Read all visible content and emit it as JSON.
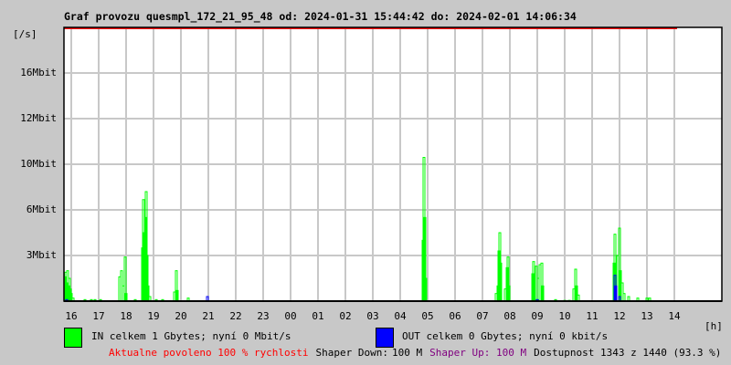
{
  "title": "Graf provozu quesmpl_172_21_95_48 od: 2024-01-31 15:44:42 do: 2024-02-01 14:06:34",
  "colors": {
    "in": "#00ff00",
    "out": "#0000ff",
    "limit": "#ff0000",
    "grid": "#c8c8c8",
    "shaper_up": "#800080"
  },
  "chart_data": {
    "type": "line",
    "ylabel": "[/s]",
    "xlabel": "[h]",
    "y_ticks": [
      "3Mbit",
      "6Mbit",
      "10Mbit",
      "12Mbit",
      "16Mbit"
    ],
    "y_tick_values": [
      3,
      6,
      10,
      12,
      16
    ],
    "x_ticks": [
      "16",
      "17",
      "18",
      "19",
      "20",
      "21",
      "22",
      "23",
      "00",
      "01",
      "02",
      "03",
      "04",
      "05",
      "06",
      "07",
      "08",
      "09",
      "10",
      "11",
      "12",
      "13",
      "14"
    ],
    "x_range": [
      "2024-01-31 15:44:42",
      "2024-02-01 14:06:34"
    ],
    "grid": true,
    "series": [
      {
        "name": "IN",
        "unit": "Mbit/s",
        "points": [
          [
            "15:46",
            1.6
          ],
          [
            "15:48",
            1.9
          ],
          [
            "15:50",
            1.2
          ],
          [
            "15:52",
            2.0
          ],
          [
            "15:54",
            1.0
          ],
          [
            "15:56",
            1.5
          ],
          [
            "15:58",
            0.8
          ],
          [
            "16:00",
            0.5
          ],
          [
            "16:04",
            0.2
          ],
          [
            "16:30",
            0.1
          ],
          [
            "16:44",
            0.1
          ],
          [
            "16:52",
            0.1
          ],
          [
            "17:04",
            0.1
          ],
          [
            "17:46",
            1.6
          ],
          [
            "17:50",
            2.0
          ],
          [
            "17:54",
            1.0
          ],
          [
            "17:58",
            2.9
          ],
          [
            "18:00",
            0.5
          ],
          [
            "18:20",
            0.1
          ],
          [
            "18:36",
            3.5
          ],
          [
            "18:38",
            6.9
          ],
          [
            "18:40",
            4.5
          ],
          [
            "18:42",
            5.5
          ],
          [
            "18:44",
            7.6
          ],
          [
            "18:46",
            3.0
          ],
          [
            "18:48",
            1.0
          ],
          [
            "18:52",
            0.3
          ],
          [
            "19:06",
            0.1
          ],
          [
            "19:20",
            0.1
          ],
          [
            "19:46",
            0.6
          ],
          [
            "19:50",
            2.0
          ],
          [
            "19:52",
            0.7
          ],
          [
            "20:16",
            0.2
          ],
          [
            "04:50",
            4.0
          ],
          [
            "04:52",
            10.3
          ],
          [
            "04:54",
            5.5
          ],
          [
            "04:56",
            1.5
          ],
          [
            "07:30",
            0.5
          ],
          [
            "07:34",
            1.0
          ],
          [
            "07:36",
            3.3
          ],
          [
            "07:38",
            4.5
          ],
          [
            "07:40",
            2.5
          ],
          [
            "07:50",
            0.8
          ],
          [
            "07:54",
            2.2
          ],
          [
            "07:56",
            2.9
          ],
          [
            "07:58",
            1.0
          ],
          [
            "08:50",
            1.8
          ],
          [
            "08:52",
            2.6
          ],
          [
            "08:54",
            1.2
          ],
          [
            "08:58",
            2.3
          ],
          [
            "09:02",
            1.5
          ],
          [
            "09:06",
            2.4
          ],
          [
            "09:10",
            2.5
          ],
          [
            "09:12",
            1.0
          ],
          [
            "09:40",
            0.1
          ],
          [
            "10:00",
            0.05
          ],
          [
            "10:10",
            0.05
          ],
          [
            "10:20",
            0.8
          ],
          [
            "10:24",
            2.1
          ],
          [
            "10:26",
            1.0
          ],
          [
            "10:30",
            0.4
          ],
          [
            "11:48",
            2.5
          ],
          [
            "11:50",
            4.4
          ],
          [
            "11:52",
            2.0
          ],
          [
            "11:56",
            3.0
          ],
          [
            "12:00",
            4.8
          ],
          [
            "12:02",
            2.0
          ],
          [
            "12:06",
            1.2
          ],
          [
            "12:10",
            0.5
          ],
          [
            "12:20",
            0.3
          ],
          [
            "12:40",
            0.2
          ],
          [
            "13:00",
            0.2
          ],
          [
            "13:06",
            0.2
          ]
        ]
      },
      {
        "name": "OUT",
        "unit": "kbit/s",
        "points": [
          [
            "15:50",
            0.1
          ],
          [
            "20:58",
            0.3
          ],
          [
            "09:00",
            0.1
          ],
          [
            "11:50",
            1.7
          ],
          [
            "11:52",
            1.0
          ],
          [
            "12:00",
            0.3
          ]
        ]
      }
    ]
  },
  "legend": {
    "in": "IN celkem 1 Gbytes; nyní 0 Mbit/s",
    "out": "OUT celkem 0 Gbytes; nyní 0 kbit/s"
  },
  "footer": {
    "allowed": "Aktualne povoleno 100 % rychlosti",
    "shaper_down_label": "Shaper Down:",
    "shaper_down_value": "100 M",
    "shaper_up": "Shaper Up: 100 M",
    "availability": "Dostupnost 1343 z 1440 (93.3 %)"
  }
}
